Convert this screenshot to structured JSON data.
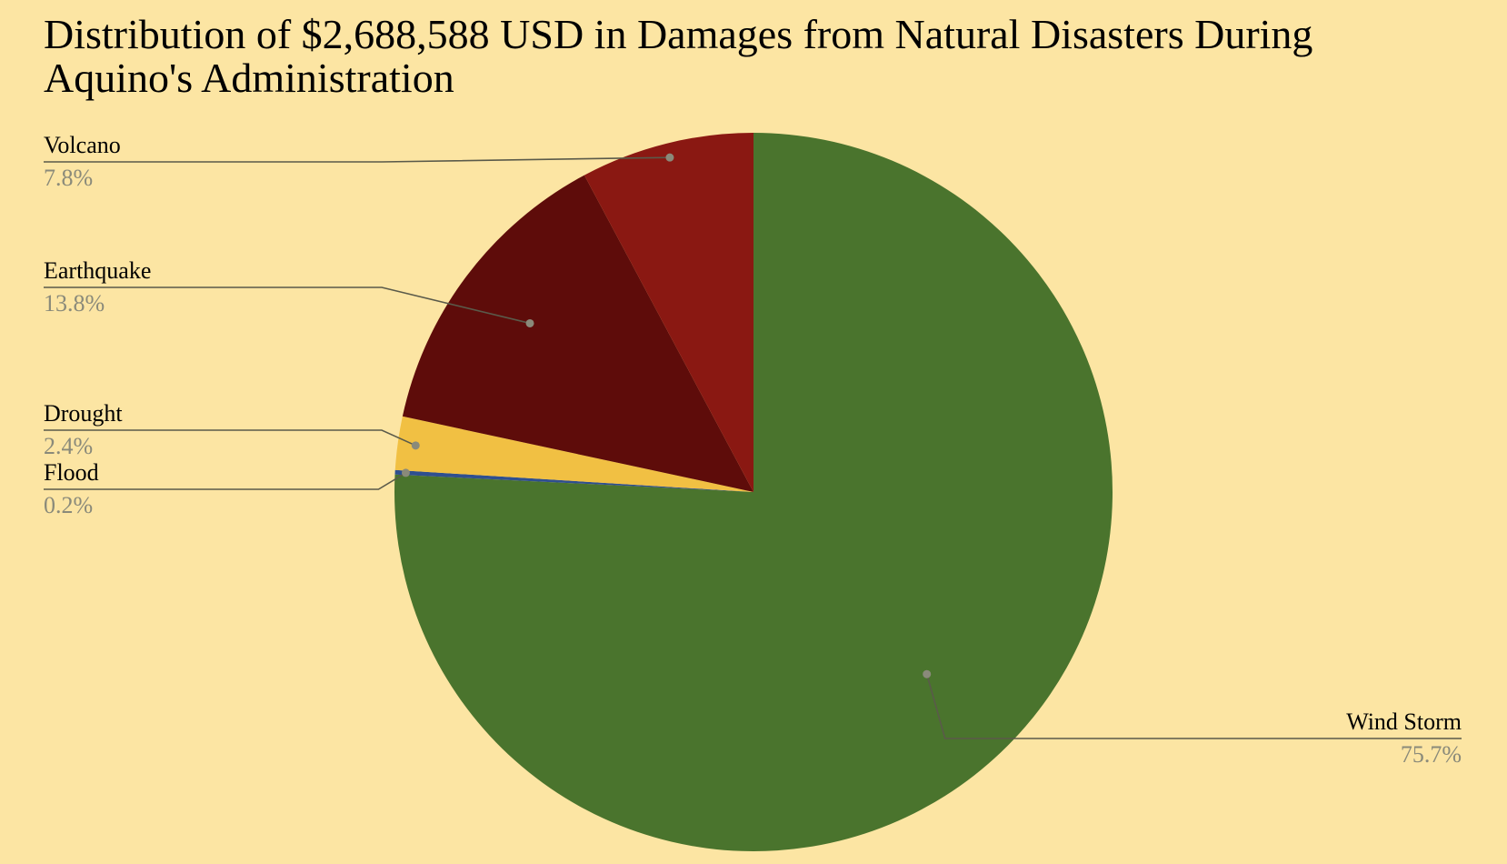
{
  "chart_data": {
    "type": "pie",
    "title": "Distribution of $2,688,588 USD in Damages from Natural Disasters During Aquino's Administration",
    "slices": [
      {
        "label": "Wind Storm",
        "value": 75.7,
        "pct_label": "75.7%",
        "color": "#4a742d"
      },
      {
        "label": "Flood",
        "value": 0.2,
        "pct_label": "0.2%",
        "color": "#2f4f8f"
      },
      {
        "label": "Drought",
        "value": 2.4,
        "pct_label": "2.4%",
        "color": "#f1c043"
      },
      {
        "label": "Earthquake",
        "value": 13.8,
        "pct_label": "13.8%",
        "color": "#5e0c0a"
      },
      {
        "label": "Volcano",
        "value": 7.8,
        "pct_label": "7.8%",
        "color": "#8a1812"
      }
    ],
    "start_angle": "12 o'clock",
    "direction": "clockwise",
    "legend": "none (leader-line labels)"
  },
  "colors": {
    "background": "#fce5a3",
    "leader_line": "#5a5a4a",
    "percent_text": "#8a8a7a"
  }
}
